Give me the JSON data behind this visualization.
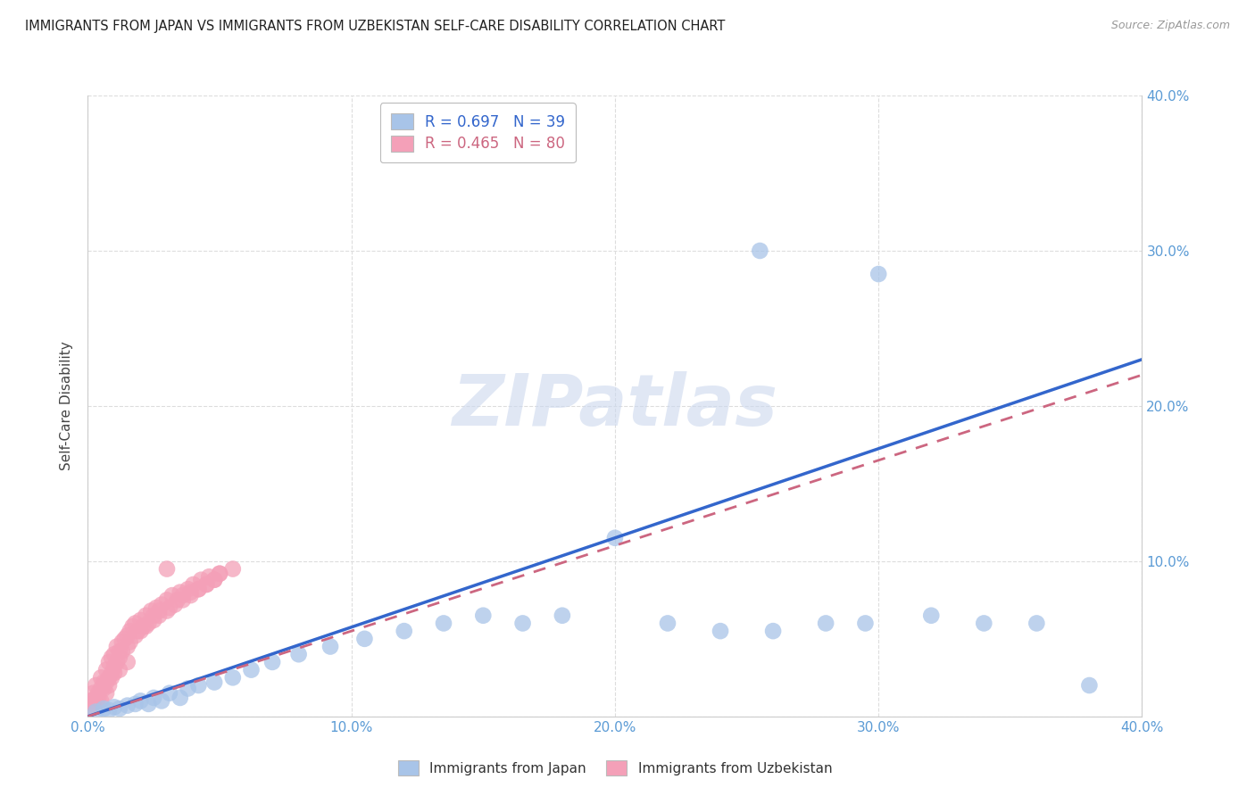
{
  "title": "IMMIGRANTS FROM JAPAN VS IMMIGRANTS FROM UZBEKISTAN SELF-CARE DISABILITY CORRELATION CHART",
  "source": "Source: ZipAtlas.com",
  "ylabel_label": "Self-Care Disability",
  "xlim": [
    0.0,
    0.4
  ],
  "ylim": [
    0.0,
    0.4
  ],
  "xticks": [
    0.0,
    0.1,
    0.2,
    0.3,
    0.4
  ],
  "yticks": [
    0.0,
    0.1,
    0.2,
    0.3,
    0.4
  ],
  "xtick_labels": [
    "0.0%",
    "10.0%",
    "20.0%",
    "30.0%",
    "40.0%"
  ],
  "ytick_labels_right": [
    "",
    "10.0%",
    "20.0%",
    "30.0%",
    "40.0%"
  ],
  "japan_color": "#a8c4e8",
  "uzbekistan_color": "#f4a0b8",
  "japan_R": 0.697,
  "japan_N": 39,
  "uzbekistan_R": 0.465,
  "uzbekistan_N": 80,
  "japan_x": [
    0.003,
    0.006,
    0.008,
    0.01,
    0.012,
    0.015,
    0.018,
    0.02,
    0.023,
    0.025,
    0.028,
    0.031,
    0.035,
    0.038,
    0.042,
    0.048,
    0.055,
    0.062,
    0.07,
    0.08,
    0.092,
    0.105,
    0.12,
    0.135,
    0.15,
    0.165,
    0.18,
    0.2,
    0.22,
    0.24,
    0.26,
    0.28,
    0.3,
    0.32,
    0.34,
    0.36,
    0.38,
    0.295,
    0.255
  ],
  "japan_y": [
    0.003,
    0.005,
    0.004,
    0.006,
    0.005,
    0.007,
    0.008,
    0.01,
    0.008,
    0.012,
    0.01,
    0.015,
    0.012,
    0.018,
    0.02,
    0.022,
    0.025,
    0.03,
    0.035,
    0.04,
    0.045,
    0.05,
    0.055,
    0.06,
    0.065,
    0.06,
    0.065,
    0.115,
    0.06,
    0.055,
    0.055,
    0.06,
    0.285,
    0.065,
    0.06,
    0.06,
    0.02,
    0.06,
    0.3
  ],
  "uzbekistan_x": [
    0.001,
    0.002,
    0.003,
    0.004,
    0.005,
    0.005,
    0.006,
    0.007,
    0.007,
    0.008,
    0.008,
    0.009,
    0.009,
    0.01,
    0.01,
    0.011,
    0.012,
    0.012,
    0.013,
    0.014,
    0.015,
    0.015,
    0.016,
    0.017,
    0.018,
    0.019,
    0.02,
    0.021,
    0.022,
    0.023,
    0.024,
    0.025,
    0.026,
    0.027,
    0.028,
    0.03,
    0.031,
    0.032,
    0.034,
    0.035,
    0.036,
    0.038,
    0.039,
    0.04,
    0.042,
    0.043,
    0.045,
    0.046,
    0.048,
    0.05,
    0.001,
    0.002,
    0.003,
    0.004,
    0.005,
    0.006,
    0.007,
    0.008,
    0.009,
    0.01,
    0.011,
    0.012,
    0.013,
    0.015,
    0.016,
    0.018,
    0.02,
    0.022,
    0.025,
    0.027,
    0.03,
    0.033,
    0.036,
    0.039,
    0.042,
    0.045,
    0.048,
    0.05,
    0.03,
    0.055
  ],
  "uzbekistan_y": [
    0.01,
    0.015,
    0.02,
    0.012,
    0.018,
    0.025,
    0.022,
    0.03,
    0.015,
    0.035,
    0.02,
    0.038,
    0.025,
    0.04,
    0.028,
    0.045,
    0.042,
    0.03,
    0.048,
    0.05,
    0.052,
    0.035,
    0.055,
    0.058,
    0.06,
    0.055,
    0.062,
    0.058,
    0.065,
    0.06,
    0.068,
    0.065,
    0.07,
    0.068,
    0.072,
    0.075,
    0.07,
    0.078,
    0.075,
    0.08,
    0.078,
    0.082,
    0.08,
    0.085,
    0.082,
    0.088,
    0.085,
    0.09,
    0.088,
    0.092,
    0.005,
    0.008,
    0.012,
    0.015,
    0.01,
    0.018,
    0.022,
    0.025,
    0.028,
    0.032,
    0.035,
    0.038,
    0.042,
    0.045,
    0.048,
    0.052,
    0.055,
    0.058,
    0.062,
    0.065,
    0.068,
    0.072,
    0.075,
    0.078,
    0.082,
    0.085,
    0.088,
    0.092,
    0.095,
    0.095
  ],
  "japan_line_x": [
    0.0,
    0.4
  ],
  "japan_line_y": [
    0.0,
    0.23
  ],
  "uzbekistan_line_x": [
    0.0,
    0.4
  ],
  "uzbekistan_line_y": [
    0.0,
    0.22
  ],
  "background_color": "#ffffff",
  "grid_color": "#dddddd",
  "tick_color": "#5b9bd5",
  "watermark_text": "ZIPatlas",
  "japan_line_color": "#3366cc",
  "uzbekistan_line_color": "#cc6680"
}
